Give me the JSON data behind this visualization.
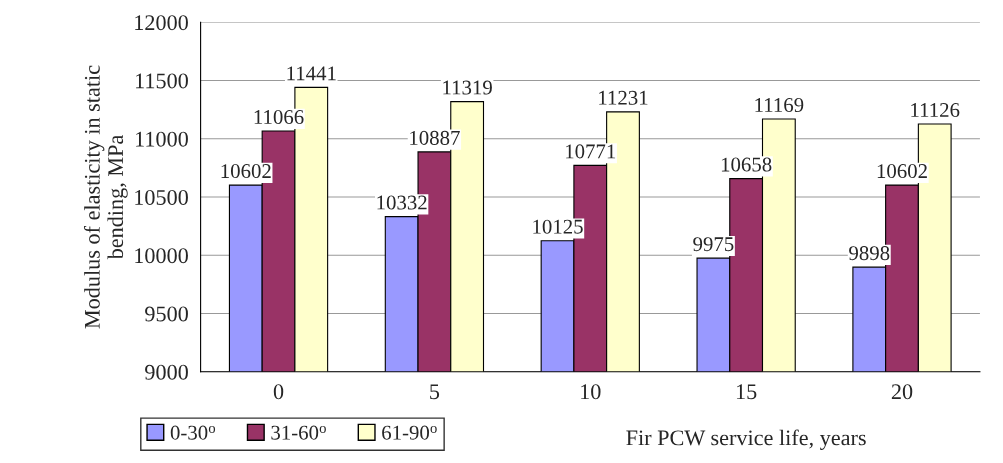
{
  "chart_data": {
    "type": "bar",
    "xlabel": "Fir PCW service life, years",
    "ylabel": "Modulus of elasticity in static\nbending, MPa",
    "categories": [
      "0",
      "5",
      "10",
      "15",
      "20"
    ],
    "series": [
      {
        "name": "0-30$^{o}$",
        "color": "#9999ff",
        "values": [
          10602,
          10332,
          10125,
          9975,
          9898
        ]
      },
      {
        "name": "31-60$^{o}$",
        "color": "#993366",
        "values": [
          11066,
          10887,
          10771,
          10658,
          10602
        ]
      },
      {
        "name": "61-90$^{o}$",
        "color": "#ffffcc",
        "values": [
          11441,
          11319,
          11231,
          11169,
          11126
        ]
      }
    ],
    "ylim": [
      9000,
      12000
    ],
    "yticks": [
      9000,
      9500,
      10000,
      10500,
      11000,
      11500,
      12000
    ],
    "grid": "y",
    "legend": "bottom left",
    "data_labels": true
  }
}
